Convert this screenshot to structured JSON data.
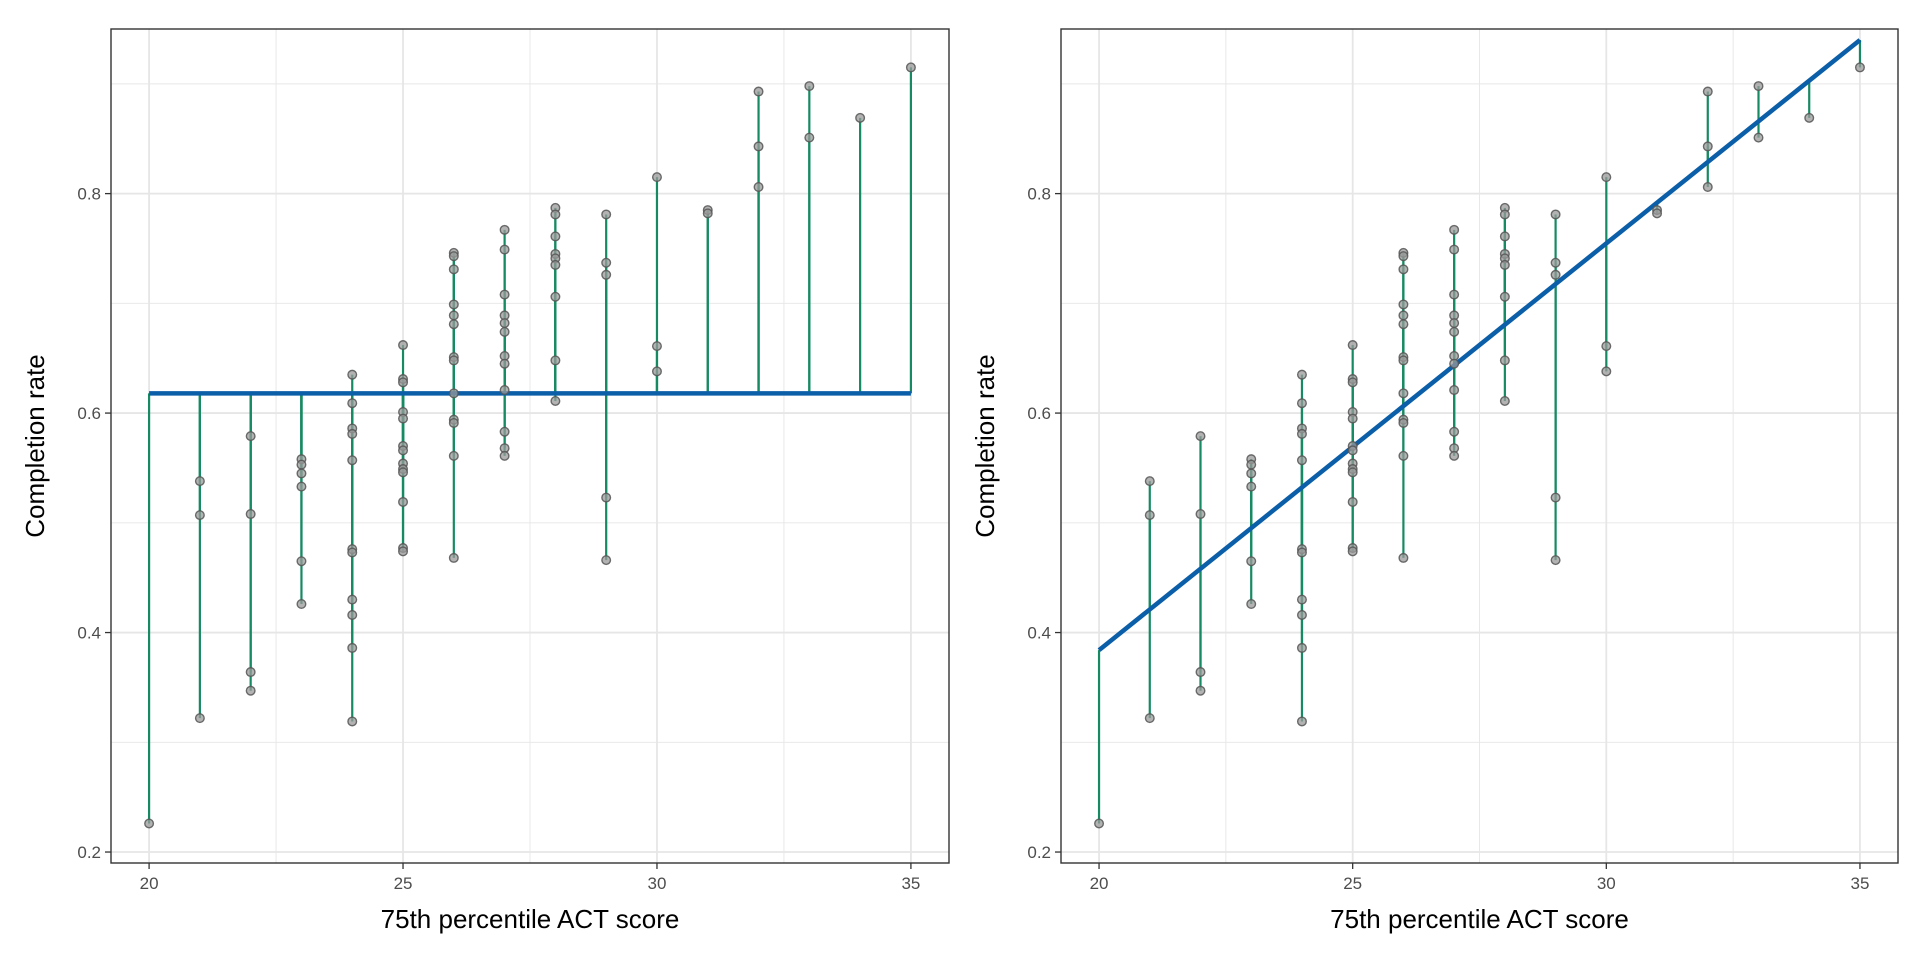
{
  "colors": {
    "points_fill": "#9a9a9a",
    "points_stroke": "#555555",
    "residual": "#168a63",
    "fit_line": "#0b5ea8",
    "grid": "#e6e6e6",
    "panel_border": "#333333"
  },
  "chart_data": [
    {
      "type": "scatter",
      "title": "",
      "xlabel": "75th percentile ACT score",
      "ylabel": "Completion rate",
      "xlim": [
        19.25,
        35.75
      ],
      "ylim": [
        0.19,
        0.95
      ],
      "x_ticks": [
        20,
        25,
        30,
        35
      ],
      "x_tick_labels": [
        "20",
        "25",
        "30",
        "35"
      ],
      "y_ticks": [
        0.2,
        0.4,
        0.6,
        0.8
      ],
      "y_tick_labels": [
        "0.2",
        "0.4",
        "0.6",
        "0.8"
      ],
      "grid": true,
      "fit_line": {
        "model": "intercept-only",
        "x": [
          20,
          35
        ],
        "y": [
          0.618,
          0.618
        ]
      },
      "points": [
        {
          "x": 20,
          "y": 0.226
        },
        {
          "x": 21,
          "y": 0.538
        },
        {
          "x": 21,
          "y": 0.507
        },
        {
          "x": 21,
          "y": 0.322
        },
        {
          "x": 22,
          "y": 0.579
        },
        {
          "x": 22,
          "y": 0.508
        },
        {
          "x": 22,
          "y": 0.364
        },
        {
          "x": 22,
          "y": 0.347
        },
        {
          "x": 23,
          "y": 0.558
        },
        {
          "x": 23,
          "y": 0.553
        },
        {
          "x": 23,
          "y": 0.545
        },
        {
          "x": 23,
          "y": 0.533
        },
        {
          "x": 23,
          "y": 0.465
        },
        {
          "x": 23,
          "y": 0.426
        },
        {
          "x": 24,
          "y": 0.635
        },
        {
          "x": 24,
          "y": 0.609
        },
        {
          "x": 24,
          "y": 0.586
        },
        {
          "x": 24,
          "y": 0.581
        },
        {
          "x": 24,
          "y": 0.557
        },
        {
          "x": 24,
          "y": 0.476
        },
        {
          "x": 24,
          "y": 0.473
        },
        {
          "x": 24,
          "y": 0.43
        },
        {
          "x": 24,
          "y": 0.416
        },
        {
          "x": 24,
          "y": 0.386
        },
        {
          "x": 24,
          "y": 0.319
        },
        {
          "x": 25,
          "y": 0.662
        },
        {
          "x": 25,
          "y": 0.631
        },
        {
          "x": 25,
          "y": 0.628
        },
        {
          "x": 25,
          "y": 0.601
        },
        {
          "x": 25,
          "y": 0.595
        },
        {
          "x": 25,
          "y": 0.57
        },
        {
          "x": 25,
          "y": 0.566
        },
        {
          "x": 25,
          "y": 0.554
        },
        {
          "x": 25,
          "y": 0.549
        },
        {
          "x": 25,
          "y": 0.546
        },
        {
          "x": 25,
          "y": 0.519
        },
        {
          "x": 25,
          "y": 0.477
        },
        {
          "x": 25,
          "y": 0.474
        },
        {
          "x": 26,
          "y": 0.746
        },
        {
          "x": 26,
          "y": 0.743
        },
        {
          "x": 26,
          "y": 0.731
        },
        {
          "x": 26,
          "y": 0.699
        },
        {
          "x": 26,
          "y": 0.689
        },
        {
          "x": 26,
          "y": 0.681
        },
        {
          "x": 26,
          "y": 0.651
        },
        {
          "x": 26,
          "y": 0.648
        },
        {
          "x": 26,
          "y": 0.618
        },
        {
          "x": 26,
          "y": 0.594
        },
        {
          "x": 26,
          "y": 0.591
        },
        {
          "x": 26,
          "y": 0.561
        },
        {
          "x": 26,
          "y": 0.468
        },
        {
          "x": 27,
          "y": 0.767
        },
        {
          "x": 27,
          "y": 0.749
        },
        {
          "x": 27,
          "y": 0.708
        },
        {
          "x": 27,
          "y": 0.689
        },
        {
          "x": 27,
          "y": 0.682
        },
        {
          "x": 27,
          "y": 0.674
        },
        {
          "x": 27,
          "y": 0.652
        },
        {
          "x": 27,
          "y": 0.645
        },
        {
          "x": 27,
          "y": 0.621
        },
        {
          "x": 27,
          "y": 0.583
        },
        {
          "x": 27,
          "y": 0.568
        },
        {
          "x": 27,
          "y": 0.561
        },
        {
          "x": 28,
          "y": 0.787
        },
        {
          "x": 28,
          "y": 0.781
        },
        {
          "x": 28,
          "y": 0.761
        },
        {
          "x": 28,
          "y": 0.745
        },
        {
          "x": 28,
          "y": 0.741
        },
        {
          "x": 28,
          "y": 0.735
        },
        {
          "x": 28,
          "y": 0.706
        },
        {
          "x": 28,
          "y": 0.648
        },
        {
          "x": 28,
          "y": 0.611
        },
        {
          "x": 29,
          "y": 0.781
        },
        {
          "x": 29,
          "y": 0.737
        },
        {
          "x": 29,
          "y": 0.726
        },
        {
          "x": 29,
          "y": 0.523
        },
        {
          "x": 29,
          "y": 0.466
        },
        {
          "x": 30,
          "y": 0.815
        },
        {
          "x": 30,
          "y": 0.661
        },
        {
          "x": 30,
          "y": 0.638
        },
        {
          "x": 31,
          "y": 0.785
        },
        {
          "x": 31,
          "y": 0.782
        },
        {
          "x": 32,
          "y": 0.893
        },
        {
          "x": 32,
          "y": 0.843
        },
        {
          "x": 32,
          "y": 0.806
        },
        {
          "x": 33,
          "y": 0.898
        },
        {
          "x": 33,
          "y": 0.851
        },
        {
          "x": 34,
          "y": 0.869
        },
        {
          "x": 35,
          "y": 0.915
        }
      ]
    },
    {
      "type": "scatter",
      "title": "",
      "xlabel": "75th percentile ACT score",
      "ylabel": "Completion rate",
      "xlim": [
        19.25,
        35.75
      ],
      "ylim": [
        0.19,
        0.95
      ],
      "x_ticks": [
        20,
        25,
        30,
        35
      ],
      "x_tick_labels": [
        "20",
        "25",
        "30",
        "35"
      ],
      "y_ticks": [
        0.2,
        0.4,
        0.6,
        0.8
      ],
      "y_tick_labels": [
        "0.2",
        "0.4",
        "0.6",
        "0.8"
      ],
      "grid": true,
      "fit_line": {
        "model": "linear",
        "x": [
          20,
          35
        ],
        "y": [
          0.384,
          0.94
        ]
      },
      "points": [
        {
          "x": 20,
          "y": 0.226
        },
        {
          "x": 21,
          "y": 0.538
        },
        {
          "x": 21,
          "y": 0.507
        },
        {
          "x": 21,
          "y": 0.322
        },
        {
          "x": 22,
          "y": 0.579
        },
        {
          "x": 22,
          "y": 0.508
        },
        {
          "x": 22,
          "y": 0.364
        },
        {
          "x": 22,
          "y": 0.347
        },
        {
          "x": 23,
          "y": 0.558
        },
        {
          "x": 23,
          "y": 0.553
        },
        {
          "x": 23,
          "y": 0.545
        },
        {
          "x": 23,
          "y": 0.533
        },
        {
          "x": 23,
          "y": 0.465
        },
        {
          "x": 23,
          "y": 0.426
        },
        {
          "x": 24,
          "y": 0.635
        },
        {
          "x": 24,
          "y": 0.609
        },
        {
          "x": 24,
          "y": 0.586
        },
        {
          "x": 24,
          "y": 0.581
        },
        {
          "x": 24,
          "y": 0.557
        },
        {
          "x": 24,
          "y": 0.476
        },
        {
          "x": 24,
          "y": 0.473
        },
        {
          "x": 24,
          "y": 0.43
        },
        {
          "x": 24,
          "y": 0.416
        },
        {
          "x": 24,
          "y": 0.386
        },
        {
          "x": 24,
          "y": 0.319
        },
        {
          "x": 25,
          "y": 0.662
        },
        {
          "x": 25,
          "y": 0.631
        },
        {
          "x": 25,
          "y": 0.628
        },
        {
          "x": 25,
          "y": 0.601
        },
        {
          "x": 25,
          "y": 0.595
        },
        {
          "x": 25,
          "y": 0.57
        },
        {
          "x": 25,
          "y": 0.566
        },
        {
          "x": 25,
          "y": 0.554
        },
        {
          "x": 25,
          "y": 0.549
        },
        {
          "x": 25,
          "y": 0.546
        },
        {
          "x": 25,
          "y": 0.519
        },
        {
          "x": 25,
          "y": 0.477
        },
        {
          "x": 25,
          "y": 0.474
        },
        {
          "x": 26,
          "y": 0.746
        },
        {
          "x": 26,
          "y": 0.743
        },
        {
          "x": 26,
          "y": 0.731
        },
        {
          "x": 26,
          "y": 0.699
        },
        {
          "x": 26,
          "y": 0.689
        },
        {
          "x": 26,
          "y": 0.681
        },
        {
          "x": 26,
          "y": 0.651
        },
        {
          "x": 26,
          "y": 0.648
        },
        {
          "x": 26,
          "y": 0.618
        },
        {
          "x": 26,
          "y": 0.594
        },
        {
          "x": 26,
          "y": 0.591
        },
        {
          "x": 26,
          "y": 0.561
        },
        {
          "x": 26,
          "y": 0.468
        },
        {
          "x": 27,
          "y": 0.767
        },
        {
          "x": 27,
          "y": 0.749
        },
        {
          "x": 27,
          "y": 0.708
        },
        {
          "x": 27,
          "y": 0.689
        },
        {
          "x": 27,
          "y": 0.682
        },
        {
          "x": 27,
          "y": 0.674
        },
        {
          "x": 27,
          "y": 0.652
        },
        {
          "x": 27,
          "y": 0.645
        },
        {
          "x": 27,
          "y": 0.621
        },
        {
          "x": 27,
          "y": 0.583
        },
        {
          "x": 27,
          "y": 0.568
        },
        {
          "x": 27,
          "y": 0.561
        },
        {
          "x": 28,
          "y": 0.787
        },
        {
          "x": 28,
          "y": 0.781
        },
        {
          "x": 28,
          "y": 0.761
        },
        {
          "x": 28,
          "y": 0.745
        },
        {
          "x": 28,
          "y": 0.741
        },
        {
          "x": 28,
          "y": 0.735
        },
        {
          "x": 28,
          "y": 0.706
        },
        {
          "x": 28,
          "y": 0.648
        },
        {
          "x": 28,
          "y": 0.611
        },
        {
          "x": 29,
          "y": 0.781
        },
        {
          "x": 29,
          "y": 0.737
        },
        {
          "x": 29,
          "y": 0.726
        },
        {
          "x": 29,
          "y": 0.523
        },
        {
          "x": 29,
          "y": 0.466
        },
        {
          "x": 30,
          "y": 0.815
        },
        {
          "x": 30,
          "y": 0.661
        },
        {
          "x": 30,
          "y": 0.638
        },
        {
          "x": 31,
          "y": 0.785
        },
        {
          "x": 31,
          "y": 0.782
        },
        {
          "x": 32,
          "y": 0.893
        },
        {
          "x": 32,
          "y": 0.843
        },
        {
          "x": 32,
          "y": 0.806
        },
        {
          "x": 33,
          "y": 0.898
        },
        {
          "x": 33,
          "y": 0.851
        },
        {
          "x": 34,
          "y": 0.869
        },
        {
          "x": 35,
          "y": 0.915
        }
      ]
    }
  ]
}
